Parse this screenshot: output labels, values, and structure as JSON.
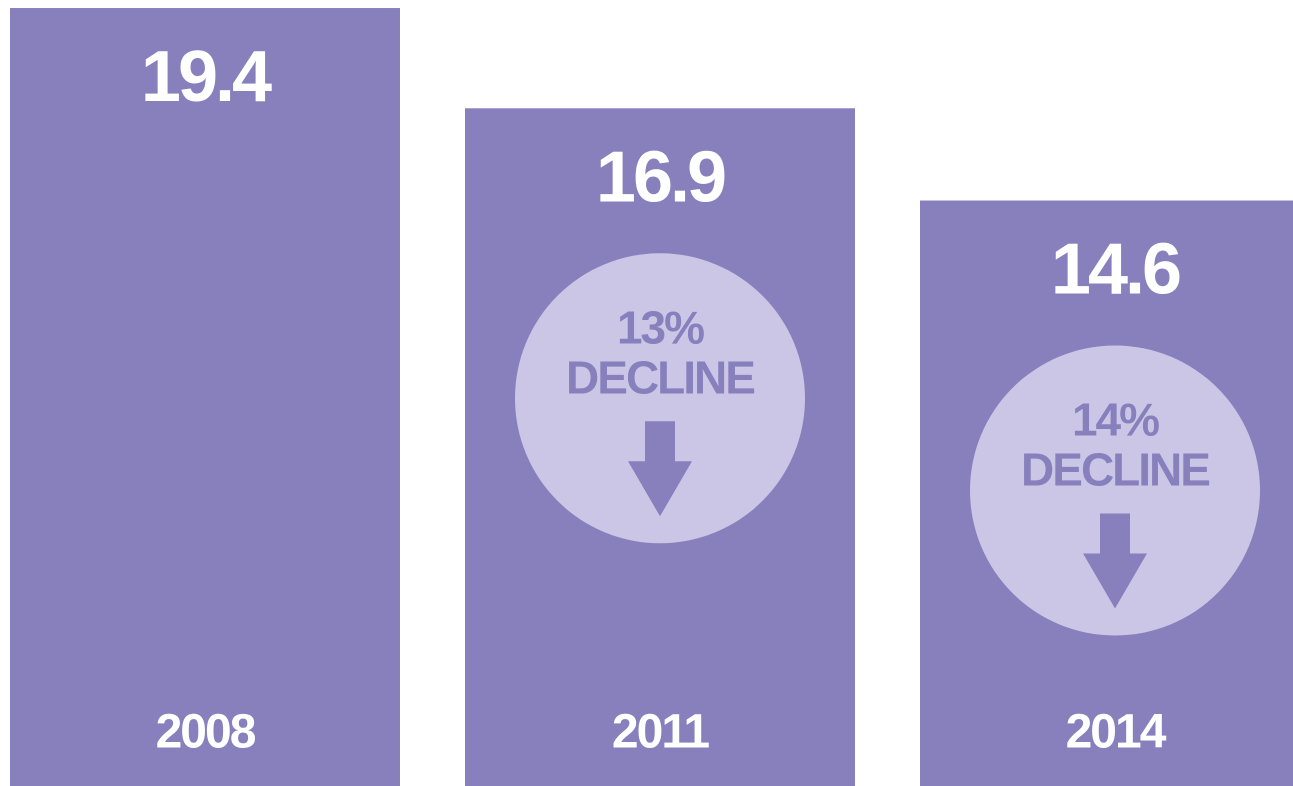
{
  "chart_data": {
    "type": "bar",
    "categories": [
      "2008",
      "2011",
      "2014"
    ],
    "values": [
      19.4,
      16.9,
      14.6
    ],
    "color": "#8880bd",
    "ylim": [
      0,
      19.6
    ],
    "annotations": [
      [
        "13%",
        "DECLINE"
      ],
      [
        "14%",
        "DECLINE"
      ]
    ],
    "annotation_color": "#ccc6e6"
  }
}
